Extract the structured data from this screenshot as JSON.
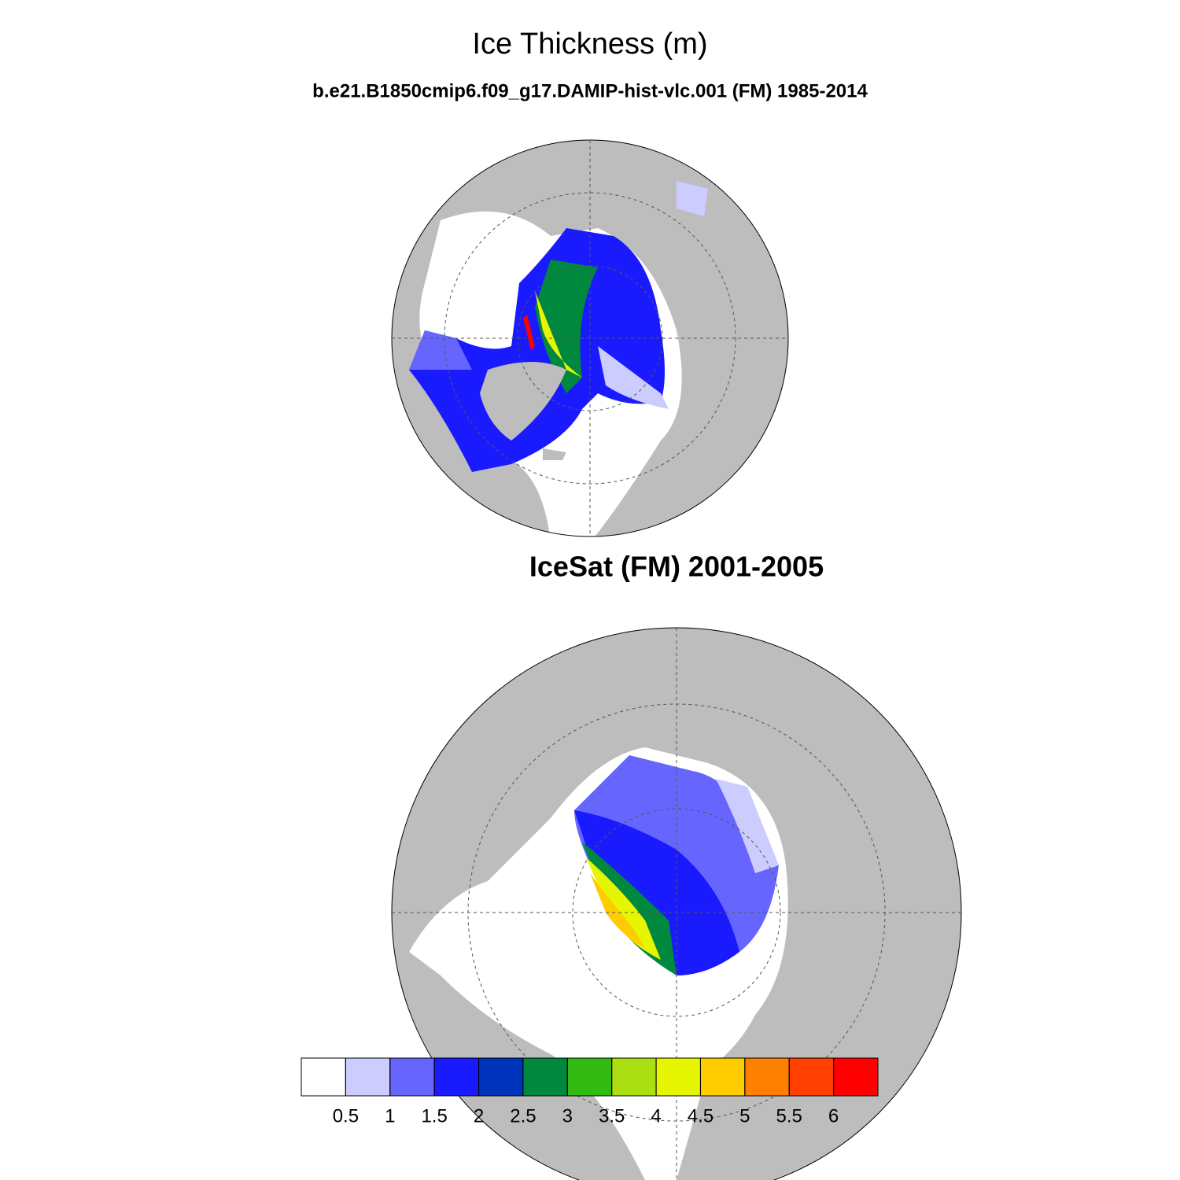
{
  "title": "Ice Thickness (m)",
  "subtitle": "b.e21.B1850cmip6.f09_g17.DAMIP-hist-vlc.001 (FM) 1985-2014",
  "panel_title": "IceSat (FM) 2001-2005",
  "colorbar": {
    "levels": [
      0.5,
      1,
      1.5,
      2,
      2.5,
      3,
      3.5,
      4,
      4.5,
      5,
      5.5,
      6
    ],
    "colors": [
      "#ffffff",
      "#ccccff",
      "#6666ff",
      "#1a1aff",
      "#0033bb",
      "#00883f",
      "#33bb11",
      "#aae011",
      "#e6f500",
      "#ffcc00",
      "#ff8000",
      "#ff4000",
      "#ff0000"
    ]
  }
}
